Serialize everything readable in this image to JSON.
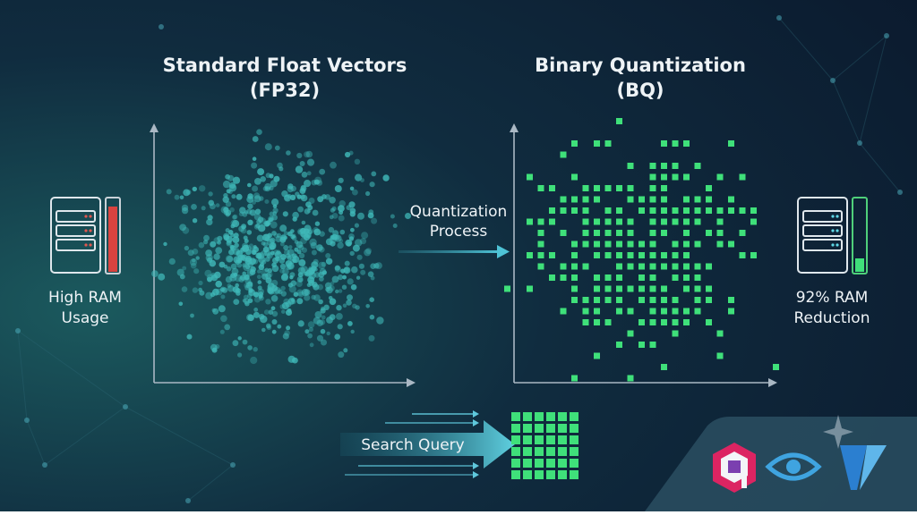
{
  "panels": [
    {
      "title": [
        "Standard Float Vectors",
        "(FP32)"
      ]
    },
    {
      "title": [
        "Binary Quantization",
        "(BQ)"
      ]
    }
  ],
  "process_label": [
    "Quantization",
    "Process"
  ],
  "left_server": {
    "label": [
      "High RAM",
      "Usage"
    ]
  },
  "right_server": {
    "label": [
      "92% RAM",
      "Reduction"
    ]
  },
  "query_label": "Search Query"
}
